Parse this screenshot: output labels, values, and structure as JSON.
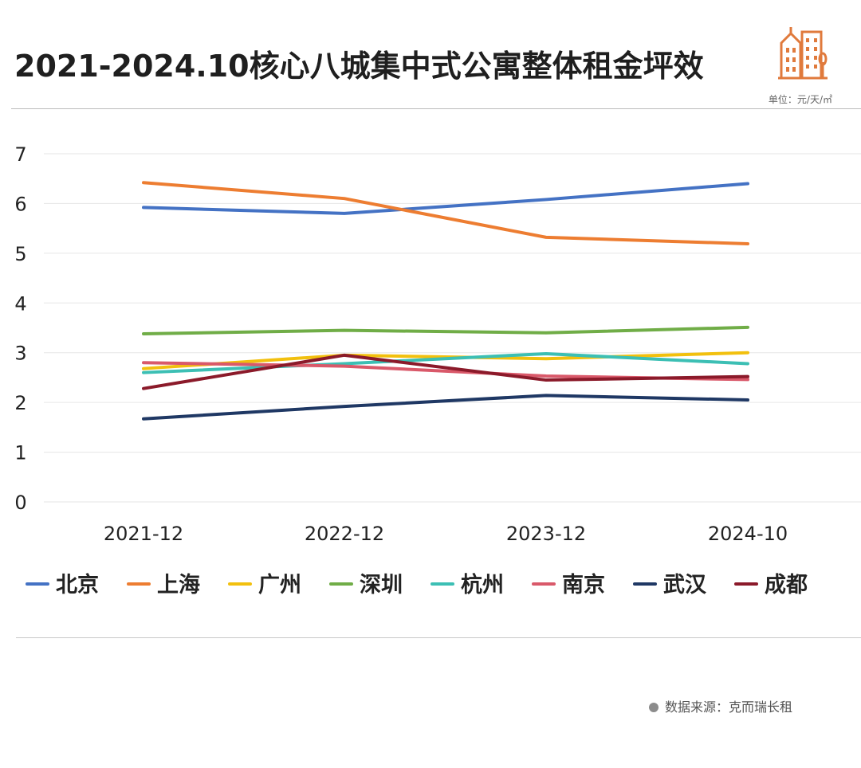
{
  "header": {
    "title": "2021-2024.10核心八城集中式公寓整体租金坪效",
    "unit": "单位：元/天/㎡",
    "logo_icon": "city-buildings-icon"
  },
  "footer": {
    "source": "数据来源：克而瑞长租"
  },
  "colors": {
    "logo": "#e07a3c",
    "grid": "#e6e6e6",
    "axis_text": "#222222"
  },
  "chart_data": {
    "type": "line",
    "title": "2021-2024.10核心八城集中式公寓整体租金坪效",
    "xlabel": "",
    "ylabel": "",
    "categories": [
      "2021-12",
      "2022-12",
      "2023-12",
      "2024-10"
    ],
    "ylim": [
      0,
      7
    ],
    "yticks": [
      0,
      1,
      2,
      3,
      4,
      5,
      6,
      7
    ],
    "grid": true,
    "legend_position": "bottom",
    "series": [
      {
        "name": "北京",
        "color": "#4472c4",
        "values": [
          5.92,
          5.8,
          6.08,
          6.4
        ]
      },
      {
        "name": "上海",
        "color": "#ed7d31",
        "values": [
          6.42,
          6.1,
          5.32,
          5.19
        ]
      },
      {
        "name": "广州",
        "color": "#f2c00e",
        "values": [
          2.68,
          2.95,
          2.88,
          3.0
        ]
      },
      {
        "name": "深圳",
        "color": "#70ad47",
        "values": [
          3.38,
          3.45,
          3.4,
          3.51
        ]
      },
      {
        "name": "杭州",
        "color": "#3cbfb4",
        "values": [
          2.6,
          2.78,
          2.98,
          2.78
        ]
      },
      {
        "name": "南京",
        "color": "#d9596a",
        "values": [
          2.8,
          2.73,
          2.53,
          2.46
        ]
      },
      {
        "name": "武汉",
        "color": "#1f3864",
        "values": [
          1.67,
          1.92,
          2.14,
          2.05
        ]
      },
      {
        "name": "成都",
        "color": "#8b1a2a",
        "values": [
          2.28,
          2.95,
          2.45,
          2.52
        ]
      }
    ]
  }
}
